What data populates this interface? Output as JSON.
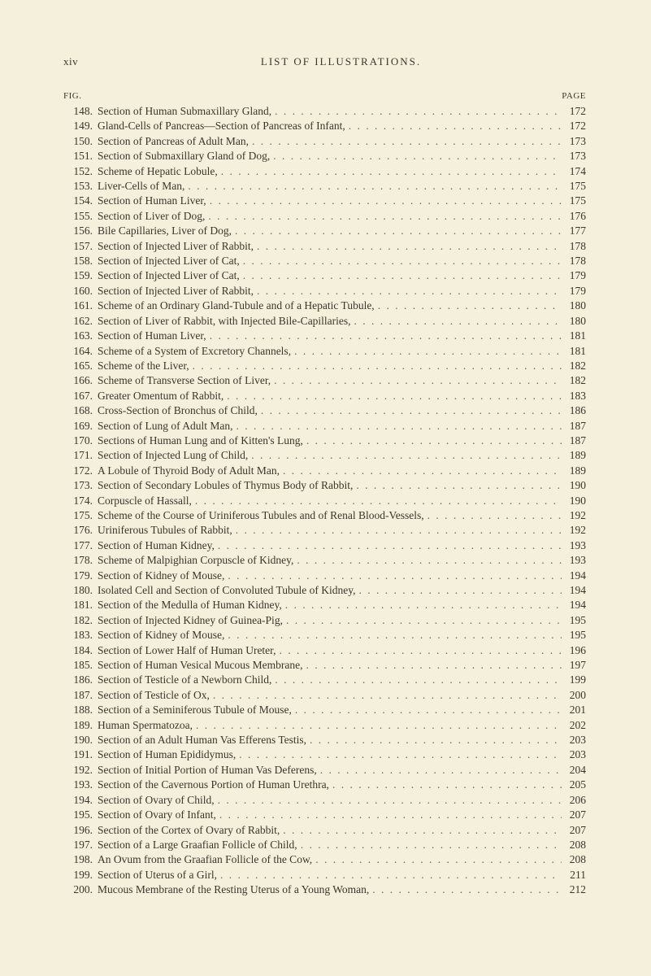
{
  "header": {
    "page_num_roman": "xiv",
    "title": "LIST OF ILLUSTRATIONS."
  },
  "column_labels": {
    "fig": "FIG.",
    "page": "PAGE"
  },
  "entries": [
    {
      "n": "148.",
      "t": "Section of Human Submaxillary Gland,",
      "p": "172"
    },
    {
      "n": "149.",
      "t": "Gland-Cells of Pancreas—Section of Pancreas of Infant,",
      "p": "172"
    },
    {
      "n": "150.",
      "t": "Section of Pancreas of Adult Man,",
      "p": "173"
    },
    {
      "n": "151.",
      "t": "Section of Submaxillary Gland of Dog,",
      "p": "173"
    },
    {
      "n": "152.",
      "t": "Scheme of Hepatic Lobule,",
      "p": "174"
    },
    {
      "n": "153.",
      "t": "Liver-Cells of Man,",
      "p": "175"
    },
    {
      "n": "154.",
      "t": "Section of Human Liver,",
      "p": "175"
    },
    {
      "n": "155.",
      "t": "Section of Liver of Dog,",
      "p": "176"
    },
    {
      "n": "156.",
      "t": "Bile Capillaries, Liver of Dog,",
      "p": "177"
    },
    {
      "n": "157.",
      "t": "Section of Injected Liver of Rabbit,",
      "p": "178"
    },
    {
      "n": "158.",
      "t": "Section of Injected Liver of Cat,",
      "p": "178"
    },
    {
      "n": "159.",
      "t": "Section of Injected Liver of Cat,",
      "p": "179"
    },
    {
      "n": "160.",
      "t": "Section of Injected Liver of Rabbit,",
      "p": "179"
    },
    {
      "n": "161.",
      "t": "Scheme of an Ordinary Gland-Tubule and of a Hepatic Tubule,",
      "p": "180"
    },
    {
      "n": "162.",
      "t": "Section of Liver of Rabbit, with Injected Bile-Capillaries,",
      "p": "180"
    },
    {
      "n": "163.",
      "t": "Section of Human Liver,",
      "p": "181"
    },
    {
      "n": "164.",
      "t": "Scheme of a System of Excretory Channels,",
      "p": "181"
    },
    {
      "n": "165.",
      "t": "Scheme of the Liver,",
      "p": "182"
    },
    {
      "n": "166.",
      "t": "Scheme of Transverse Section of Liver,",
      "p": "182"
    },
    {
      "n": "167.",
      "t": "Greater Omentum of Rabbit,",
      "p": "183"
    },
    {
      "n": "168.",
      "t": "Cross-Section of Bronchus of Child,",
      "p": "186"
    },
    {
      "n": "169.",
      "t": "Section of Lung of Adult Man,",
      "p": "187"
    },
    {
      "n": "170.",
      "t": "Sections of Human Lung and of Kitten's Lung,",
      "p": "187"
    },
    {
      "n": "171.",
      "t": "Section of Injected Lung of Child,",
      "p": "189"
    },
    {
      "n": "172.",
      "t": "A Lobule of Thyroid Body of Adult Man,",
      "p": "189"
    },
    {
      "n": "173.",
      "t": "Section of Secondary Lobules of Thymus Body of Rabbit,",
      "p": "190"
    },
    {
      "n": "174.",
      "t": "Corpuscle of Hassall,",
      "p": "190"
    },
    {
      "n": "175.",
      "t": "Scheme of the Course of Uriniferous Tubules and of Renal Blood-Vessels,",
      "p": "192"
    },
    {
      "n": "176.",
      "t": "Uriniferous Tubules of Rabbit,",
      "p": "192"
    },
    {
      "n": "177.",
      "t": "Section of Human Kidney,",
      "p": "193"
    },
    {
      "n": "178.",
      "t": "Scheme of Malpighian Corpuscle of Kidney,",
      "p": "193"
    },
    {
      "n": "179.",
      "t": "Section of Kidney of Mouse,",
      "p": "194"
    },
    {
      "n": "180.",
      "t": "Isolated Cell and Section of Convoluted Tubule of Kidney,",
      "p": "194"
    },
    {
      "n": "181.",
      "t": "Section of the Medulla of Human Kidney,",
      "p": "194"
    },
    {
      "n": "182.",
      "t": "Section of Injected Kidney of Guinea-Pig,",
      "p": "195"
    },
    {
      "n": "183.",
      "t": "Section of Kidney of Mouse,",
      "p": "195"
    },
    {
      "n": "184.",
      "t": "Section of Lower Half of Human Ureter,",
      "p": "196"
    },
    {
      "n": "185.",
      "t": "Section of Human Vesical Mucous Membrane,",
      "p": "197"
    },
    {
      "n": "186.",
      "t": "Section of Testicle of a Newborn Child,",
      "p": "199"
    },
    {
      "n": "187.",
      "t": "Section of Testicle of Ox,",
      "p": "200"
    },
    {
      "n": "188.",
      "t": "Section of a Seminiferous Tubule of Mouse,",
      "p": "201"
    },
    {
      "n": "189.",
      "t": "Human Spermatozoa,",
      "p": "202"
    },
    {
      "n": "190.",
      "t": "Section of an Adult Human Vas Efferens Testis,",
      "p": "203"
    },
    {
      "n": "191.",
      "t": "Section of Human Epididymus,",
      "p": "203"
    },
    {
      "n": "192.",
      "t": "Section of Initial Portion of Human Vas Deferens,",
      "p": "204"
    },
    {
      "n": "193.",
      "t": "Section of the Cavernous Portion of Human Urethra,",
      "p": "205"
    },
    {
      "n": "194.",
      "t": "Section of Ovary of Child,",
      "p": "206"
    },
    {
      "n": "195.",
      "t": "Section of Ovary of Infant,",
      "p": "207"
    },
    {
      "n": "196.",
      "t": "Section of the Cortex of Ovary of Rabbit,",
      "p": "207"
    },
    {
      "n": "197.",
      "t": "Section of a Large Graafian Follicle of Child,",
      "p": "208"
    },
    {
      "n": "198.",
      "t": "An Ovum from the Graafian Follicle of the Cow,",
      "p": "208"
    },
    {
      "n": "199.",
      "t": "Section of Uterus of a Girl,",
      "p": "211"
    },
    {
      "n": "200.",
      "t": "Mucous Membrane of the Resting Uterus of a Young Woman,",
      "p": "212"
    }
  ]
}
